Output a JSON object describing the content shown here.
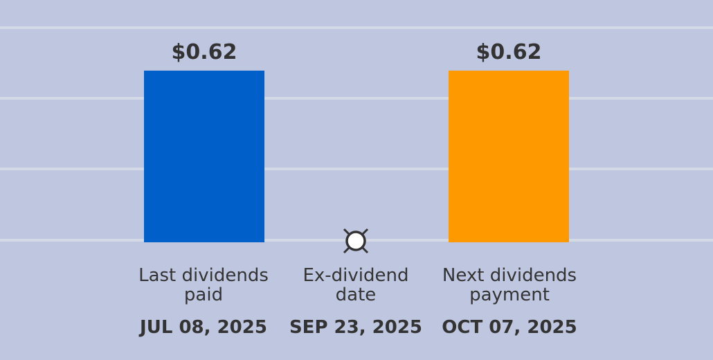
{
  "chart_data": {
    "type": "bar",
    "categories": [
      "Last dividends paid",
      "Ex-dividend date",
      "Next dividends payment"
    ],
    "dates": [
      "JUL 08, 2025",
      "SEP 23, 2025",
      "OCT 07, 2025"
    ],
    "series": [
      {
        "values": [
          0.62,
          null,
          0.62
        ],
        "data_labels": [
          "$0.62",
          "",
          "$0.62"
        ]
      }
    ],
    "colors": [
      "#005fc8",
      null,
      "#ff9900"
    ],
    "marker": {
      "category": "Ex-dividend date",
      "icon": "ex-dividend-marker-icon",
      "fill": "#ffffff",
      "stroke": "#333333"
    },
    "background": "#bfc6e0",
    "gridline_color": "#d4d9e6",
    "grid": true,
    "ylim": [
      0,
      0.775
    ],
    "title": "",
    "xlabel": "",
    "ylabel": ""
  }
}
